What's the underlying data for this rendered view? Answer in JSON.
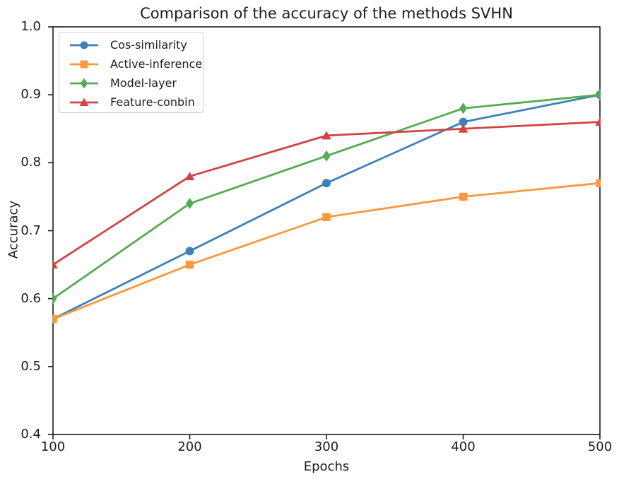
{
  "figure": {
    "background": "#ffffff",
    "spine_color": "#1a1a1a",
    "text_color": "#1c1c1c",
    "legend_border_color": "#cccccc"
  },
  "chart_data": {
    "type": "line",
    "title": "Comparison of the accuracy of the methods SVHN",
    "xlabel": "Epochs",
    "ylabel": "Accuracy",
    "x": [
      100,
      200,
      300,
      400,
      500
    ],
    "xlim": [
      100,
      500
    ],
    "ylim": [
      0.4,
      1.0
    ],
    "xticks": [
      100,
      200,
      300,
      400,
      500
    ],
    "yticks": [
      0.4,
      0.5,
      0.6,
      0.7,
      0.8,
      0.9,
      1.0
    ],
    "grid": false,
    "legend_position": "upper left",
    "series": [
      {
        "name": "Cos-similarity",
        "color": "#3f80b9",
        "marker": "circle",
        "values": [
          0.57,
          0.67,
          0.77,
          0.86,
          0.9
        ]
      },
      {
        "name": "Active-inference",
        "color": "#f9993d",
        "marker": "square",
        "values": [
          0.57,
          0.65,
          0.72,
          0.75,
          0.77
        ]
      },
      {
        "name": "Model-layer",
        "color": "#53ab53",
        "marker": "diamond",
        "values": [
          0.6,
          0.74,
          0.81,
          0.88,
          0.9
        ]
      },
      {
        "name": "Feature-conbin",
        "color": "#d24444",
        "marker": "triangle",
        "values": [
          0.65,
          0.78,
          0.84,
          0.85,
          0.86
        ]
      }
    ]
  }
}
